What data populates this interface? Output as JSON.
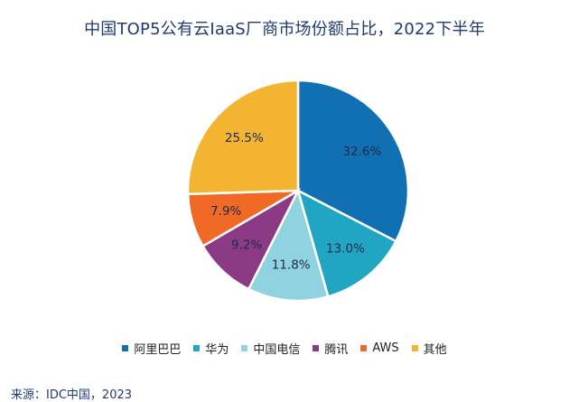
{
  "chart_data": {
    "type": "pie",
    "title": "中国TOP5公有云IaaS厂商市场份额占比，2022下半年",
    "categories": [
      "阿里巴巴",
      "华为",
      "中国电信",
      "腾讯",
      "AWS",
      "其他"
    ],
    "values": [
      32.6,
      13.0,
      11.8,
      9.2,
      7.9,
      25.5
    ],
    "value_labels": [
      "32.6%",
      "13.0%",
      "11.8%",
      "9.2%",
      "7.9%",
      "25.5%"
    ],
    "unit": "%",
    "colors": [
      "#1170b2",
      "#20a6c2",
      "#8fd3e0",
      "#8c3a86",
      "#f06a25",
      "#f3b431"
    ],
    "legend_position": "bottom",
    "start": "12 o'clock",
    "direction": "clockwise"
  },
  "source": "来源：IDC中国，2023"
}
